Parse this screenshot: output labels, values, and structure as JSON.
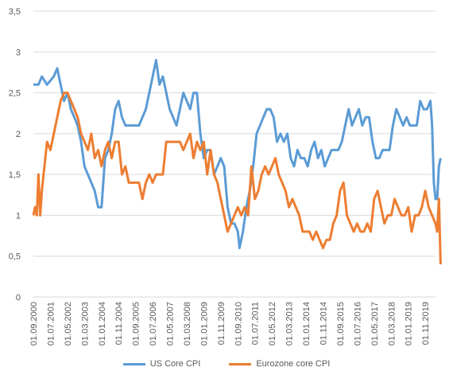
{
  "chart_data": {
    "type": "line",
    "title": "",
    "xlabel": "",
    "ylabel": "",
    "ylim": [
      0,
      3.5
    ],
    "yticks": [
      "0",
      "0,5",
      "1",
      "1,5",
      "2",
      "2,5",
      "3",
      "3,5"
    ],
    "grid": true,
    "legend_position": "bottom",
    "x_start": "2000-09",
    "x_end": "2020-05",
    "x_tick_labels": [
      "01.09.2000",
      "01.07.2001",
      "01.05.2002",
      "01.03.2003",
      "01.01.2004",
      "01.11.2004",
      "01.09.2005",
      "01.07.2006",
      "01.05.2007",
      "01.03.2008",
      "01.01.2009",
      "01.11.2009",
      "01.09.2010",
      "01.07.2011",
      "01.05.2012",
      "01.03.2013",
      "01.01.2014",
      "01.11.2014",
      "01.09.2015",
      "01.07.2016",
      "01.05.2017",
      "01.03.2018",
      "01.01.2019",
      "01.11.2019"
    ],
    "series": [
      {
        "name": "US Core CPI",
        "color": "#5b9bd5",
        "points": [
          [
            "2000-09",
            2.6
          ],
          [
            "2000-12",
            2.6
          ],
          [
            "2001-02",
            2.7
          ],
          [
            "2001-05",
            2.6
          ],
          [
            "2001-09",
            2.7
          ],
          [
            "2001-11",
            2.8
          ],
          [
            "2002-01",
            2.6
          ],
          [
            "2002-03",
            2.4
          ],
          [
            "2002-05",
            2.5
          ],
          [
            "2002-07",
            2.3
          ],
          [
            "2002-09",
            2.2
          ],
          [
            "2002-11",
            2.1
          ],
          [
            "2003-01",
            1.9
          ],
          [
            "2003-03",
            1.6
          ],
          [
            "2003-05",
            1.5
          ],
          [
            "2003-07",
            1.4
          ],
          [
            "2003-09",
            1.3
          ],
          [
            "2003-11",
            1.1
          ],
          [
            "2004-01",
            1.1
          ],
          [
            "2004-03",
            1.7
          ],
          [
            "2004-05",
            1.8
          ],
          [
            "2004-07",
            2.0
          ],
          [
            "2004-09",
            2.3
          ],
          [
            "2004-11",
            2.4
          ],
          [
            "2005-01",
            2.2
          ],
          [
            "2005-03",
            2.1
          ],
          [
            "2005-05",
            2.1
          ],
          [
            "2005-07",
            2.1
          ],
          [
            "2005-09",
            2.1
          ],
          [
            "2005-11",
            2.1
          ],
          [
            "2006-01",
            2.2
          ],
          [
            "2006-03",
            2.3
          ],
          [
            "2006-05",
            2.5
          ],
          [
            "2006-07",
            2.7
          ],
          [
            "2006-09",
            2.9
          ],
          [
            "2006-11",
            2.6
          ],
          [
            "2007-01",
            2.7
          ],
          [
            "2007-03",
            2.5
          ],
          [
            "2007-05",
            2.3
          ],
          [
            "2007-07",
            2.2
          ],
          [
            "2007-09",
            2.1
          ],
          [
            "2007-11",
            2.3
          ],
          [
            "2008-01",
            2.5
          ],
          [
            "2008-03",
            2.4
          ],
          [
            "2008-05",
            2.3
          ],
          [
            "2008-07",
            2.5
          ],
          [
            "2008-09",
            2.5
          ],
          [
            "2008-11",
            2.0
          ],
          [
            "2009-01",
            1.7
          ],
          [
            "2009-03",
            1.8
          ],
          [
            "2009-05",
            1.8
          ],
          [
            "2009-07",
            1.5
          ],
          [
            "2009-09",
            1.6
          ],
          [
            "2009-11",
            1.7
          ],
          [
            "2010-01",
            1.6
          ],
          [
            "2010-03",
            1.1
          ],
          [
            "2010-05",
            0.9
          ],
          [
            "2010-07",
            0.9
          ],
          [
            "2010-09",
            0.8
          ],
          [
            "2010-10",
            0.6
          ],
          [
            "2010-12",
            0.8
          ],
          [
            "2011-02",
            1.1
          ],
          [
            "2011-04",
            1.3
          ],
          [
            "2011-06",
            1.6
          ],
          [
            "2011-08",
            2.0
          ],
          [
            "2011-10",
            2.1
          ],
          [
            "2011-12",
            2.2
          ],
          [
            "2012-02",
            2.3
          ],
          [
            "2012-04",
            2.3
          ],
          [
            "2012-06",
            2.2
          ],
          [
            "2012-08",
            1.9
          ],
          [
            "2012-10",
            2.0
          ],
          [
            "2012-12",
            1.9
          ],
          [
            "2013-02",
            2.0
          ],
          [
            "2013-04",
            1.7
          ],
          [
            "2013-06",
            1.6
          ],
          [
            "2013-08",
            1.8
          ],
          [
            "2013-10",
            1.7
          ],
          [
            "2013-12",
            1.7
          ],
          [
            "2014-02",
            1.6
          ],
          [
            "2014-04",
            1.8
          ],
          [
            "2014-06",
            1.9
          ],
          [
            "2014-08",
            1.7
          ],
          [
            "2014-10",
            1.8
          ],
          [
            "2014-12",
            1.6
          ],
          [
            "2015-02",
            1.7
          ],
          [
            "2015-04",
            1.8
          ],
          [
            "2015-06",
            1.8
          ],
          [
            "2015-08",
            1.8
          ],
          [
            "2015-10",
            1.9
          ],
          [
            "2015-12",
            2.1
          ],
          [
            "2016-02",
            2.3
          ],
          [
            "2016-04",
            2.1
          ],
          [
            "2016-06",
            2.2
          ],
          [
            "2016-08",
            2.3
          ],
          [
            "2016-10",
            2.1
          ],
          [
            "2016-12",
            2.2
          ],
          [
            "2017-02",
            2.2
          ],
          [
            "2017-04",
            1.9
          ],
          [
            "2017-06",
            1.7
          ],
          [
            "2017-08",
            1.7
          ],
          [
            "2017-10",
            1.8
          ],
          [
            "2017-12",
            1.8
          ],
          [
            "2018-02",
            1.8
          ],
          [
            "2018-04",
            2.1
          ],
          [
            "2018-06",
            2.3
          ],
          [
            "2018-08",
            2.2
          ],
          [
            "2018-10",
            2.1
          ],
          [
            "2018-12",
            2.2
          ],
          [
            "2019-02",
            2.1
          ],
          [
            "2019-04",
            2.1
          ],
          [
            "2019-06",
            2.1
          ],
          [
            "2019-08",
            2.4
          ],
          [
            "2019-10",
            2.3
          ],
          [
            "2019-12",
            2.3
          ],
          [
            "2020-02",
            2.4
          ],
          [
            "2020-03",
            2.1
          ],
          [
            "2020-04",
            1.4
          ],
          [
            "2020-05",
            1.2
          ],
          [
            "2020-06",
            1.2
          ],
          [
            "2020-07",
            1.6
          ],
          [
            "2020-08",
            1.7
          ]
        ]
      },
      {
        "name": "Eurozone core CPI",
        "color": "#ed7d31",
        "points": [
          [
            "2000-09",
            1.0
          ],
          [
            "2000-10",
            1.1
          ],
          [
            "2000-11",
            1.0
          ],
          [
            "2000-12",
            1.5
          ],
          [
            "2001-01",
            1.0
          ],
          [
            "2001-02",
            1.3
          ],
          [
            "2001-04",
            1.7
          ],
          [
            "2001-05",
            1.9
          ],
          [
            "2001-07",
            1.8
          ],
          [
            "2001-09",
            2.0
          ],
          [
            "2001-11",
            2.2
          ],
          [
            "2002-01",
            2.4
          ],
          [
            "2002-03",
            2.5
          ],
          [
            "2002-05",
            2.5
          ],
          [
            "2002-07",
            2.4
          ],
          [
            "2002-09",
            2.3
          ],
          [
            "2002-11",
            2.2
          ],
          [
            "2003-01",
            2.0
          ],
          [
            "2003-03",
            1.9
          ],
          [
            "2003-05",
            1.8
          ],
          [
            "2003-07",
            2.0
          ],
          [
            "2003-09",
            1.7
          ],
          [
            "2003-11",
            1.8
          ],
          [
            "2004-01",
            1.6
          ],
          [
            "2004-03",
            1.8
          ],
          [
            "2004-05",
            1.9
          ],
          [
            "2004-07",
            1.7
          ],
          [
            "2004-09",
            1.9
          ],
          [
            "2004-11",
            1.9
          ],
          [
            "2005-01",
            1.5
          ],
          [
            "2005-03",
            1.6
          ],
          [
            "2005-05",
            1.4
          ],
          [
            "2005-07",
            1.4
          ],
          [
            "2005-09",
            1.4
          ],
          [
            "2005-11",
            1.4
          ],
          [
            "2006-01",
            1.2
          ],
          [
            "2006-03",
            1.4
          ],
          [
            "2006-05",
            1.5
          ],
          [
            "2006-07",
            1.4
          ],
          [
            "2006-09",
            1.5
          ],
          [
            "2006-11",
            1.5
          ],
          [
            "2007-01",
            1.5
          ],
          [
            "2007-03",
            1.9
          ],
          [
            "2007-05",
            1.9
          ],
          [
            "2007-07",
            1.9
          ],
          [
            "2007-09",
            1.9
          ],
          [
            "2007-11",
            1.9
          ],
          [
            "2008-01",
            1.8
          ],
          [
            "2008-03",
            1.9
          ],
          [
            "2008-05",
            2.0
          ],
          [
            "2008-07",
            1.7
          ],
          [
            "2008-09",
            1.9
          ],
          [
            "2008-11",
            1.8
          ],
          [
            "2009-01",
            1.9
          ],
          [
            "2009-03",
            1.5
          ],
          [
            "2009-05",
            1.8
          ],
          [
            "2009-07",
            1.5
          ],
          [
            "2009-09",
            1.4
          ],
          [
            "2009-11",
            1.2
          ],
          [
            "2010-01",
            1.0
          ],
          [
            "2010-03",
            0.8
          ],
          [
            "2010-05",
            0.9
          ],
          [
            "2010-07",
            1.0
          ],
          [
            "2010-09",
            1.1
          ],
          [
            "2010-11",
            1.0
          ],
          [
            "2011-01",
            1.1
          ],
          [
            "2011-03",
            1.0
          ],
          [
            "2011-05",
            1.6
          ],
          [
            "2011-07",
            1.2
          ],
          [
            "2011-09",
            1.3
          ],
          [
            "2011-11",
            1.5
          ],
          [
            "2012-01",
            1.6
          ],
          [
            "2012-03",
            1.5
          ],
          [
            "2012-05",
            1.6
          ],
          [
            "2012-07",
            1.7
          ],
          [
            "2012-09",
            1.5
          ],
          [
            "2012-11",
            1.4
          ],
          [
            "2013-01",
            1.3
          ],
          [
            "2013-03",
            1.1
          ],
          [
            "2013-05",
            1.2
          ],
          [
            "2013-07",
            1.1
          ],
          [
            "2013-09",
            1.0
          ],
          [
            "2013-11",
            0.8
          ],
          [
            "2014-01",
            0.8
          ],
          [
            "2014-03",
            0.8
          ],
          [
            "2014-05",
            0.7
          ],
          [
            "2014-07",
            0.8
          ],
          [
            "2014-09",
            0.7
          ],
          [
            "2014-11",
            0.6
          ],
          [
            "2015-01",
            0.7
          ],
          [
            "2015-03",
            0.7
          ],
          [
            "2015-05",
            0.9
          ],
          [
            "2015-07",
            1.0
          ],
          [
            "2015-09",
            1.3
          ],
          [
            "2015-11",
            1.4
          ],
          [
            "2016-01",
            1.0
          ],
          [
            "2016-03",
            0.9
          ],
          [
            "2016-05",
            0.8
          ],
          [
            "2016-07",
            0.9
          ],
          [
            "2016-09",
            0.8
          ],
          [
            "2016-11",
            0.8
          ],
          [
            "2017-01",
            0.9
          ],
          [
            "2017-03",
            0.8
          ],
          [
            "2017-05",
            1.2
          ],
          [
            "2017-07",
            1.3
          ],
          [
            "2017-09",
            1.1
          ],
          [
            "2017-11",
            0.9
          ],
          [
            "2018-01",
            1.0
          ],
          [
            "2018-03",
            1.0
          ],
          [
            "2018-05",
            1.2
          ],
          [
            "2018-07",
            1.1
          ],
          [
            "2018-09",
            1.0
          ],
          [
            "2018-11",
            1.0
          ],
          [
            "2019-01",
            1.1
          ],
          [
            "2019-03",
            0.8
          ],
          [
            "2019-05",
            1.0
          ],
          [
            "2019-07",
            1.0
          ],
          [
            "2019-09",
            1.1
          ],
          [
            "2019-11",
            1.3
          ],
          [
            "2020-01",
            1.1
          ],
          [
            "2020-03",
            1.0
          ],
          [
            "2020-05",
            0.9
          ],
          [
            "2020-06",
            0.8
          ],
          [
            "2020-07",
            1.2
          ],
          [
            "2020-08",
            0.4
          ]
        ]
      }
    ]
  }
}
